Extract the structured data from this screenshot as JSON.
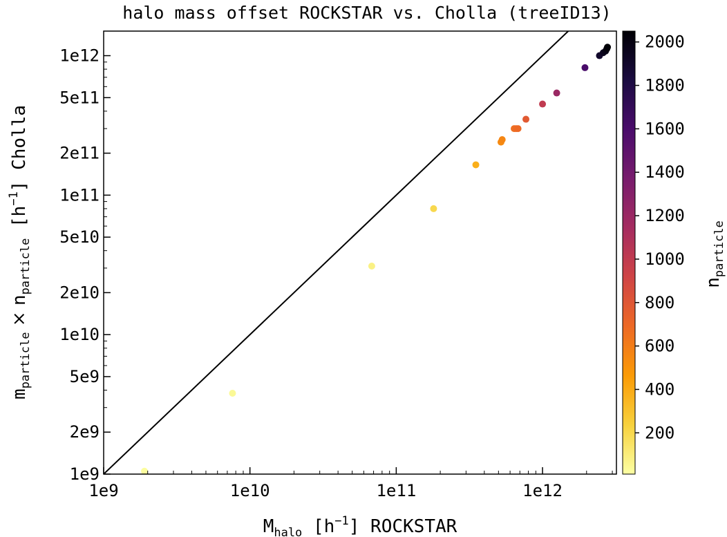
{
  "chart_data": {
    "type": "scatter",
    "title": "halo mass offset ROCKSTAR vs. Cholla (treeID13)",
    "xlabel": {
      "main": "M",
      "sub": "halo",
      "unit_open": " [h",
      "exp": "−1",
      "unit_close": "] ROCKSTAR"
    },
    "ylabel": {
      "main": "m",
      "sub1": "particle",
      "times": " × ",
      "n": "n",
      "sub2": "particle",
      "unit_open": " [h",
      "exp": "−1",
      "unit_close": "] Cholla"
    },
    "x_scale": "log",
    "y_scale": "log",
    "xlim": [
      1000000000.0,
      3200000000000.0
    ],
    "ylim": [
      1000000000.0,
      1500000000000.0
    ],
    "x_ticks": [
      {
        "value": 1000000000.0,
        "label": "1e9"
      },
      {
        "value": 10000000000.0,
        "label": "1e10"
      },
      {
        "value": 100000000000.0,
        "label": "1e11"
      },
      {
        "value": 1000000000000.0,
        "label": "1e12"
      }
    ],
    "y_ticks": [
      {
        "value": 1000000000.0,
        "label": "1e9"
      },
      {
        "value": 2000000000.0,
        "label": "2e9"
      },
      {
        "value": 5000000000.0,
        "label": "5e9"
      },
      {
        "value": 10000000000.0,
        "label": "1e10"
      },
      {
        "value": 20000000000.0,
        "label": "2e10"
      },
      {
        "value": 50000000000.0,
        "label": "5e10"
      },
      {
        "value": 100000000000.0,
        "label": "1e11"
      },
      {
        "value": 200000000000.0,
        "label": "2e11"
      },
      {
        "value": 500000000000.0,
        "label": "5e11"
      },
      {
        "value": 1000000000000.0,
        "label": "1e12"
      }
    ],
    "reference_line": "y = x",
    "grid": false,
    "colorbar": {
      "label_main": "n",
      "label_sub": "particle",
      "range": [
        10,
        2050
      ],
      "ticks": [
        200,
        400,
        600,
        800,
        1000,
        1200,
        1400,
        1600,
        1800,
        2000
      ],
      "colormap": "inferno_r",
      "stops": [
        "#fcffa4",
        "#f7d13d",
        "#fb9b06",
        "#ed6925",
        "#cf4446",
        "#a52c60",
        "#781c6d",
        "#4a0c6b",
        "#1b0c41",
        "#000004"
      ]
    },
    "points": [
      {
        "x": 1900000000.0,
        "y": 1050000000.0,
        "c": 20
      },
      {
        "x": 7600000000.0,
        "y": 3800000000.0,
        "c": 40
      },
      {
        "x": 68000000000.0,
        "y": 31000000000.0,
        "c": 80
      },
      {
        "x": 180000000000.0,
        "y": 80000000000.0,
        "c": 200
      },
      {
        "x": 350000000000.0,
        "y": 165000000000.0,
        "c": 380
      },
      {
        "x": 520000000000.0,
        "y": 240000000000.0,
        "c": 540
      },
      {
        "x": 530000000000.0,
        "y": 250000000000.0,
        "c": 560
      },
      {
        "x": 640000000000.0,
        "y": 300000000000.0,
        "c": 660
      },
      {
        "x": 660000000000.0,
        "y": 300000000000.0,
        "c": 680
      },
      {
        "x": 680000000000.0,
        "y": 300000000000.0,
        "c": 690
      },
      {
        "x": 770000000000.0,
        "y": 350000000000.0,
        "c": 780
      },
      {
        "x": 1000000000000.0,
        "y": 450000000000.0,
        "c": 1000
      },
      {
        "x": 1250000000000.0,
        "y": 540000000000.0,
        "c": 1200
      },
      {
        "x": 1950000000000.0,
        "y": 820000000000.0,
        "c": 1600
      },
      {
        "x": 2450000000000.0,
        "y": 1000000000000.0,
        "c": 1900
      },
      {
        "x": 2600000000000.0,
        "y": 1050000000000.0,
        "c": 1950
      },
      {
        "x": 2700000000000.0,
        "y": 1080000000000.0,
        "c": 1980
      },
      {
        "x": 2750000000000.0,
        "y": 1120000000000.0,
        "c": 2010
      },
      {
        "x": 2780000000000.0,
        "y": 1150000000000.0,
        "c": 2040
      }
    ]
  }
}
